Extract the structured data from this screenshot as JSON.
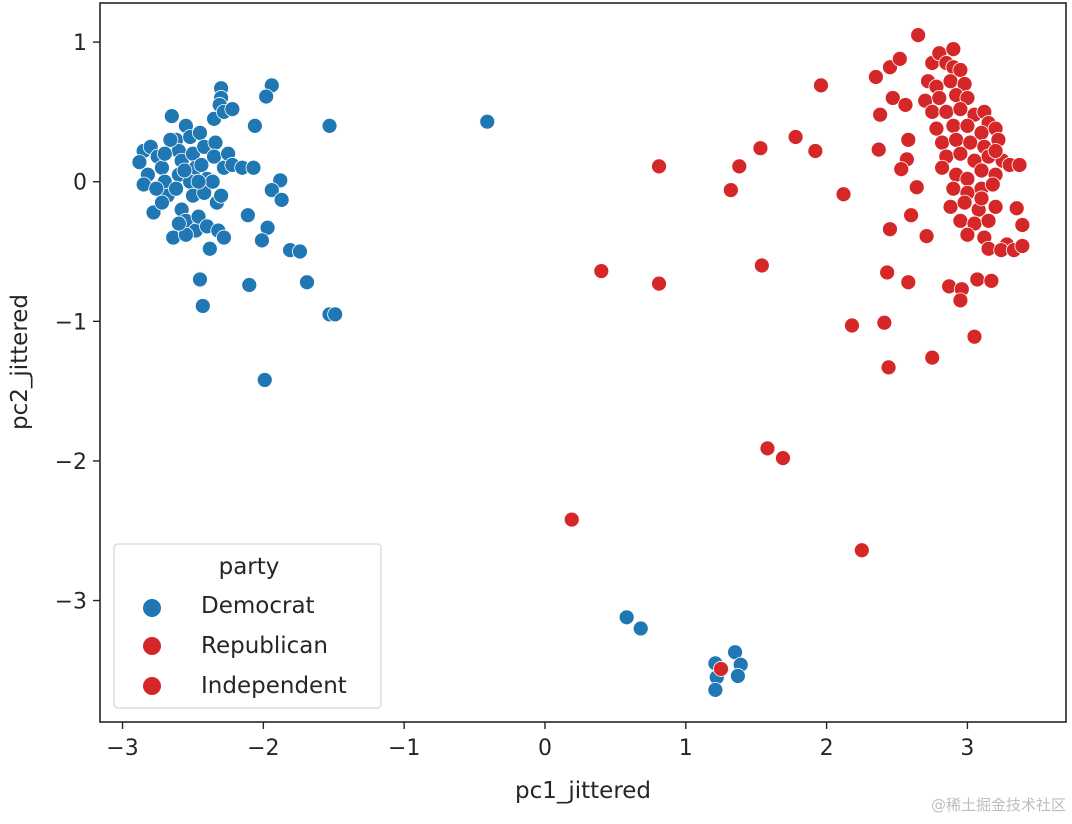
{
  "chart_data": {
    "type": "scatter",
    "title": "",
    "xlabel": "pc1_jittered",
    "ylabel": "pc2_jittered",
    "xlim": [
      -3.16,
      3.7
    ],
    "ylim": [
      -3.87,
      1.28
    ],
    "xticks": [
      -3,
      -2,
      -1,
      0,
      1,
      2,
      3
    ],
    "yticks": [
      1,
      0,
      -1,
      -2,
      -3
    ],
    "xtick_labels": [
      "−3",
      "−2",
      "−1",
      "0",
      "1",
      "2",
      "3"
    ],
    "ytick_labels": [
      "1",
      "0",
      "−1",
      "−2",
      "−3"
    ],
    "grid": false,
    "legend": {
      "title": "party",
      "placement": "bottom-left",
      "entries": [
        "Democrat",
        "Republican",
        "Independent"
      ]
    },
    "series": [
      {
        "name": "Democrat",
        "color": "#1f77b4",
        "points": [
          [
            -2.85,
            0.22
          ],
          [
            -2.88,
            0.14
          ],
          [
            -2.82,
            0.05
          ],
          [
            -2.85,
            -0.02
          ],
          [
            -2.78,
            -0.22
          ],
          [
            -2.8,
            0.25
          ],
          [
            -2.75,
            0.18
          ],
          [
            -2.72,
            0.1
          ],
          [
            -2.7,
            0.0
          ],
          [
            -2.68,
            -0.1
          ],
          [
            -2.72,
            -0.15
          ],
          [
            -2.65,
            0.47
          ],
          [
            -2.62,
            0.3
          ],
          [
            -2.6,
            0.22
          ],
          [
            -2.58,
            0.15
          ],
          [
            -2.6,
            0.05
          ],
          [
            -2.62,
            -0.05
          ],
          [
            -2.58,
            -0.2
          ],
          [
            -2.64,
            -0.4
          ],
          [
            -2.55,
            0.4
          ],
          [
            -2.52,
            0.32
          ],
          [
            -2.5,
            0.2
          ],
          [
            -2.48,
            0.1
          ],
          [
            -2.52,
            0.0
          ],
          [
            -2.5,
            -0.1
          ],
          [
            -2.55,
            -0.28
          ],
          [
            -2.48,
            -0.35
          ],
          [
            -2.55,
            -0.38
          ],
          [
            -2.45,
            0.35
          ],
          [
            -2.42,
            0.25
          ],
          [
            -2.44,
            0.12
          ],
          [
            -2.4,
            0.02
          ],
          [
            -2.42,
            -0.08
          ],
          [
            -2.46,
            -0.25
          ],
          [
            -2.4,
            -0.32
          ],
          [
            -2.38,
            -0.48
          ],
          [
            -2.35,
            0.45
          ],
          [
            -2.34,
            0.28
          ],
          [
            -2.35,
            0.18
          ],
          [
            -2.36,
            0.0
          ],
          [
            -2.33,
            -0.15
          ],
          [
            -2.32,
            -0.35
          ],
          [
            -2.28,
            -0.4
          ],
          [
            -2.28,
            0.1
          ],
          [
            -2.25,
            0.2
          ],
          [
            -2.22,
            0.12
          ],
          [
            -2.3,
            0.67
          ],
          [
            -2.3,
            0.6
          ],
          [
            -2.31,
            0.55
          ],
          [
            -2.28,
            0.5
          ],
          [
            -2.22,
            0.52
          ],
          [
            -2.3,
            -0.1
          ],
          [
            -2.66,
            0.3
          ],
          [
            -2.7,
            0.2
          ],
          [
            -2.76,
            -0.05
          ],
          [
            -2.56,
            0.08
          ],
          [
            -2.46,
            0.0
          ],
          [
            -2.6,
            -0.3
          ],
          [
            -1.94,
            0.69
          ],
          [
            -1.98,
            0.61
          ],
          [
            -2.06,
            0.4
          ],
          [
            -1.53,
            0.4
          ],
          [
            -0.41,
            0.43
          ],
          [
            -2.15,
            0.1
          ],
          [
            -2.07,
            0.1
          ],
          [
            -1.88,
            0.01
          ],
          [
            -1.94,
            -0.06
          ],
          [
            -1.87,
            -0.13
          ],
          [
            -2.11,
            -0.24
          ],
          [
            -1.97,
            -0.33
          ],
          [
            -2.01,
            -0.42
          ],
          [
            -1.81,
            -0.49
          ],
          [
            -1.74,
            -0.5
          ],
          [
            -1.69,
            -0.72
          ],
          [
            -2.1,
            -0.74
          ],
          [
            -2.45,
            -0.7
          ],
          [
            -2.43,
            -0.89
          ],
          [
            -1.53,
            -0.95
          ],
          [
            -1.49,
            -0.95
          ],
          [
            -1.99,
            -1.42
          ],
          [
            0.58,
            -3.12
          ],
          [
            0.68,
            -3.2
          ],
          [
            1.35,
            -3.37
          ],
          [
            1.39,
            -3.46
          ],
          [
            1.37,
            -3.54
          ],
          [
            1.21,
            -3.45
          ],
          [
            1.22,
            -3.55
          ],
          [
            1.21,
            -3.64
          ]
        ]
      },
      {
        "name": "Republican",
        "color": "#d62728",
        "points": [
          [
            2.75,
            0.85
          ],
          [
            2.8,
            0.92
          ],
          [
            2.85,
            0.85
          ],
          [
            2.9,
            0.82
          ],
          [
            2.72,
            0.72
          ],
          [
            2.78,
            0.68
          ],
          [
            2.88,
            0.72
          ],
          [
            2.95,
            0.8
          ],
          [
            2.98,
            0.7
          ],
          [
            2.7,
            0.58
          ],
          [
            2.8,
            0.6
          ],
          [
            2.92,
            0.62
          ],
          [
            3.0,
            0.6
          ],
          [
            2.75,
            0.5
          ],
          [
            2.85,
            0.5
          ],
          [
            2.95,
            0.52
          ],
          [
            3.05,
            0.48
          ],
          [
            3.12,
            0.5
          ],
          [
            3.15,
            0.42
          ],
          [
            2.78,
            0.38
          ],
          [
            2.9,
            0.4
          ],
          [
            3.0,
            0.4
          ],
          [
            3.1,
            0.35
          ],
          [
            3.2,
            0.38
          ],
          [
            2.82,
            0.28
          ],
          [
            2.92,
            0.3
          ],
          [
            3.02,
            0.28
          ],
          [
            3.12,
            0.25
          ],
          [
            3.22,
            0.3
          ],
          [
            3.15,
            0.18
          ],
          [
            2.85,
            0.18
          ],
          [
            2.95,
            0.2
          ],
          [
            3.05,
            0.15
          ],
          [
            3.25,
            0.15
          ],
          [
            3.3,
            0.12
          ],
          [
            2.82,
            0.1
          ],
          [
            2.92,
            0.05
          ],
          [
            3.0,
            0.02
          ],
          [
            3.1,
            0.08
          ],
          [
            3.2,
            0.05
          ],
          [
            2.9,
            -0.05
          ],
          [
            3.0,
            -0.08
          ],
          [
            3.1,
            -0.05
          ],
          [
            3.18,
            -0.02
          ],
          [
            2.88,
            -0.18
          ],
          [
            2.98,
            -0.15
          ],
          [
            3.08,
            -0.2
          ],
          [
            3.2,
            -0.18
          ],
          [
            2.95,
            -0.28
          ],
          [
            3.05,
            -0.3
          ],
          [
            3.15,
            -0.28
          ],
          [
            3.0,
            -0.38
          ],
          [
            3.12,
            -0.4
          ],
          [
            3.15,
            -0.48
          ],
          [
            3.28,
            -0.45
          ],
          [
            2.9,
            0.95
          ],
          [
            3.2,
            0.22
          ],
          [
            3.1,
            -0.12
          ],
          [
            2.65,
            1.05
          ],
          [
            2.35,
            0.75
          ],
          [
            2.45,
            0.82
          ],
          [
            2.52,
            0.88
          ],
          [
            1.96,
            0.69
          ],
          [
            1.78,
            0.32
          ],
          [
            1.92,
            0.22
          ],
          [
            2.12,
            -0.09
          ],
          [
            1.53,
            0.24
          ],
          [
            1.38,
            0.11
          ],
          [
            1.32,
            -0.06
          ],
          [
            0.81,
            0.11
          ],
          [
            0.4,
            -0.64
          ],
          [
            0.81,
            -0.73
          ],
          [
            1.54,
            -0.6
          ],
          [
            2.18,
            -1.03
          ],
          [
            2.41,
            -1.01
          ],
          [
            2.44,
            -1.33
          ],
          [
            2.75,
            -1.26
          ],
          [
            3.05,
            -1.11
          ],
          [
            1.58,
            -1.91
          ],
          [
            1.69,
            -1.98
          ],
          [
            0.19,
            -2.42
          ],
          [
            2.25,
            -2.64
          ],
          [
            2.43,
            -0.65
          ],
          [
            2.58,
            -0.72
          ],
          [
            2.45,
            -0.34
          ],
          [
            2.6,
            -0.24
          ],
          [
            2.71,
            -0.39
          ],
          [
            2.87,
            -0.75
          ],
          [
            2.96,
            -0.77
          ],
          [
            2.95,
            -0.85
          ],
          [
            3.07,
            -0.7
          ],
          [
            3.17,
            -0.71
          ],
          [
            3.24,
            -0.49
          ],
          [
            3.33,
            -0.49
          ],
          [
            3.39,
            -0.46
          ],
          [
            3.39,
            -0.31
          ],
          [
            3.35,
            -0.19
          ],
          [
            3.37,
            0.12
          ],
          [
            2.37,
            0.23
          ],
          [
            2.38,
            0.48
          ],
          [
            2.47,
            0.6
          ],
          [
            2.56,
            0.55
          ],
          [
            2.58,
            0.3
          ],
          [
            2.57,
            0.16
          ],
          [
            2.64,
            -0.04
          ],
          [
            2.53,
            0.09
          ]
        ]
      },
      {
        "name": "Independent",
        "color": "#d62728",
        "points": [
          [
            1.25,
            -3.49
          ]
        ]
      }
    ]
  },
  "watermark": "@稀土掘金技术社区"
}
